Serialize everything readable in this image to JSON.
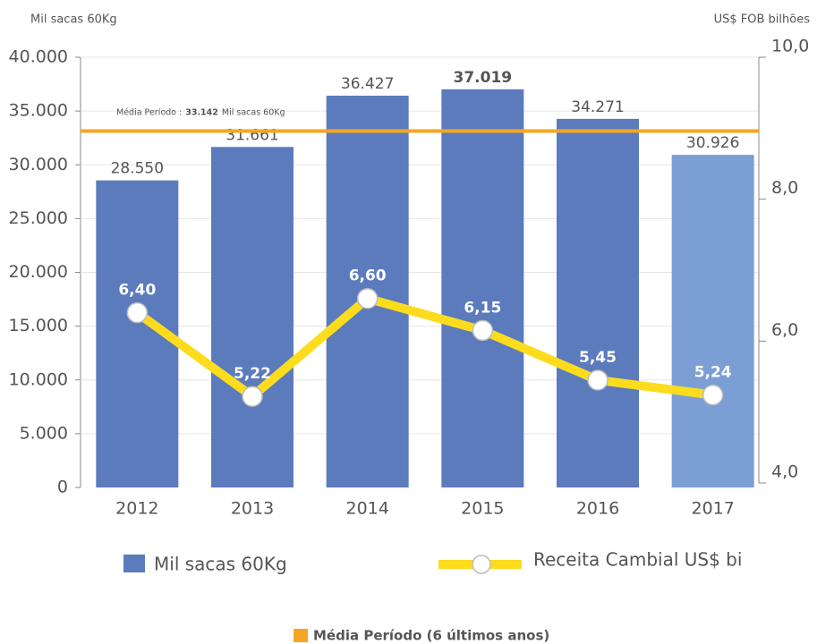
{
  "chart_data": {
    "type": "bar",
    "y_axis_label": "Mil sacas 60Kg",
    "y2_axis_label": "US$ FOB bilhões",
    "categories": [
      "2012",
      "2013",
      "2014",
      "2015",
      "2016",
      "2017"
    ],
    "series": [
      {
        "name": "Mil sacas 60Kg",
        "type": "bar",
        "color": "#5b7bbd",
        "colors": [
          "#5b7bbd",
          "#5b7bbd",
          "#5b7bbd",
          "#5b7bbd",
          "#5b7bbd",
          "#7b9fd4"
        ],
        "values": [
          28550,
          31661,
          36427,
          37019,
          34271,
          30926
        ],
        "value_labels": [
          "28.550",
          "31.661",
          "36.427",
          "37.019",
          "34.271",
          "30.926"
        ]
      },
      {
        "name": "Receita Cambial US$ bi",
        "type": "line",
        "axis": "y2",
        "color": "#fcdc1c",
        "values": [
          6.4,
          5.22,
          6.6,
          6.15,
          5.45,
          5.24
        ],
        "value_labels": [
          "6,40",
          "5,22",
          "6,60",
          "6,15",
          "5,45",
          "5,24"
        ]
      }
    ],
    "average": {
      "prefix": "Média Período :",
      "value": 33142,
      "value_label": "33.142",
      "unit": "Mil sacas 60Kg",
      "color": "#f5a623",
      "legend": "Média Período (6 últimos anos)"
    },
    "ylim": [
      0,
      40000
    ],
    "yticks": [
      0,
      {
        "value": 5000,
        "label": "5.000"
      },
      {
        "value": 10000,
        "label": "10.000"
      },
      {
        "value": 15000,
        "label": "15.000"
      },
      {
        "value": 20000,
        "label": "20.000"
      },
      {
        "value": 25000,
        "label": "25.000"
      },
      {
        "value": 30000,
        "label": "30.000"
      },
      {
        "value": 35000,
        "label": "35.000"
      },
      {
        "value": 40000,
        "label": "40.000"
      }
    ],
    "y2lim": [
      4,
      10
    ],
    "y2ticks": [
      {
        "value": 4,
        "label": "4,0"
      },
      {
        "value": 6,
        "label": "6,0"
      },
      {
        "value": 8,
        "label": "8,0"
      },
      {
        "value": 10,
        "label": "10,0"
      }
    ],
    "grid": true
  }
}
